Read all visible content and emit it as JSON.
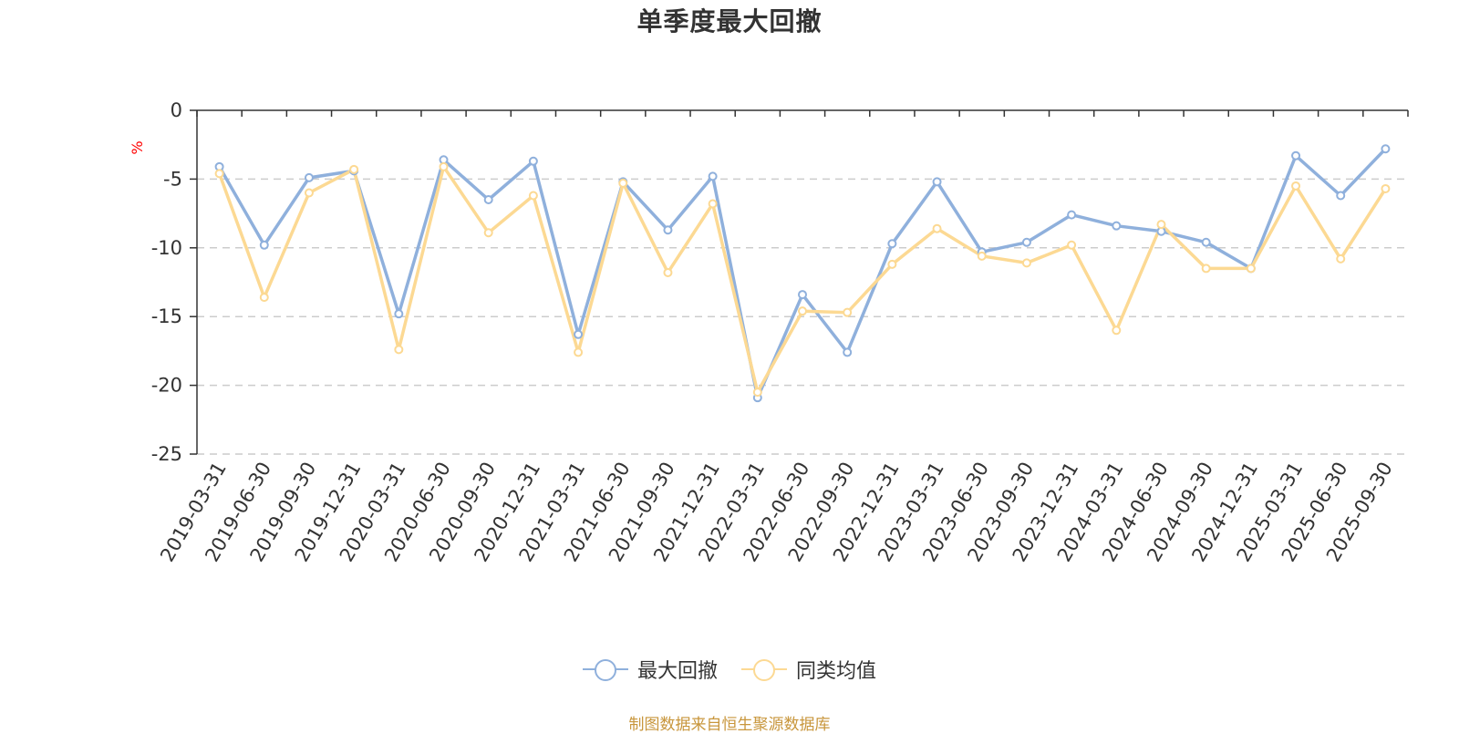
{
  "title": "单季度最大回撤",
  "source_note": "制图数据来自恒生聚源数据库",
  "colors": {
    "series1": "#8fb0dc",
    "series2": "#fcd993",
    "grid": "#cccccc",
    "axis": "#333333",
    "unit": "#ff0000",
    "source": "#c8963c"
  },
  "legend": {
    "items": [
      {
        "label": "最大回撤",
        "icon": "circle-line-icon"
      },
      {
        "label": "同类均值",
        "icon": "circle-line-icon"
      }
    ]
  },
  "chart_data": {
    "type": "line",
    "title": "单季度最大回撤",
    "xlabel": "",
    "ylabel": "%",
    "ylim": [
      -25,
      0
    ],
    "yticks": [
      0,
      -5,
      -10,
      -15,
      -20,
      -25
    ],
    "grid": true,
    "legend_position": "bottom",
    "categories": [
      "2019-03-31",
      "2019-06-30",
      "2019-09-30",
      "2019-12-31",
      "2020-03-31",
      "2020-06-30",
      "2020-09-30",
      "2020-12-31",
      "2021-03-31",
      "2021-06-30",
      "2021-09-30",
      "2021-12-31",
      "2022-03-31",
      "2022-06-30",
      "2022-09-30",
      "2022-12-31",
      "2023-03-31",
      "2023-06-30",
      "2023-09-30",
      "2023-12-31",
      "2024-03-31",
      "2024-06-30",
      "2024-09-30",
      "2024-12-31",
      "2025-03-31",
      "2025-06-30",
      "2025-09-30"
    ],
    "series": [
      {
        "name": "最大回撤",
        "color": "#8fb0dc",
        "values": [
          -4.1,
          -9.8,
          -4.9,
          -4.4,
          -14.8,
          -3.6,
          -6.5,
          -3.7,
          -16.3,
          -5.2,
          -8.7,
          -4.8,
          -20.9,
          -13.4,
          -17.6,
          -9.7,
          -5.2,
          -10.3,
          -9.6,
          -7.6,
          -8.4,
          -8.8,
          -9.6,
          -11.5,
          -3.3,
          -6.2,
          -2.8
        ]
      },
      {
        "name": "同类均值",
        "color": "#fcd993",
        "values": [
          -4.6,
          -13.6,
          -6.0,
          -4.3,
          -17.4,
          -4.1,
          -8.9,
          -6.2,
          -17.6,
          -5.3,
          -11.8,
          -6.8,
          -20.5,
          -14.6,
          -14.7,
          -11.2,
          -8.6,
          -10.6,
          -11.1,
          -9.8,
          -16.0,
          -8.3,
          -11.5,
          -11.5,
          -5.5,
          -10.8,
          -5.7
        ]
      }
    ]
  }
}
